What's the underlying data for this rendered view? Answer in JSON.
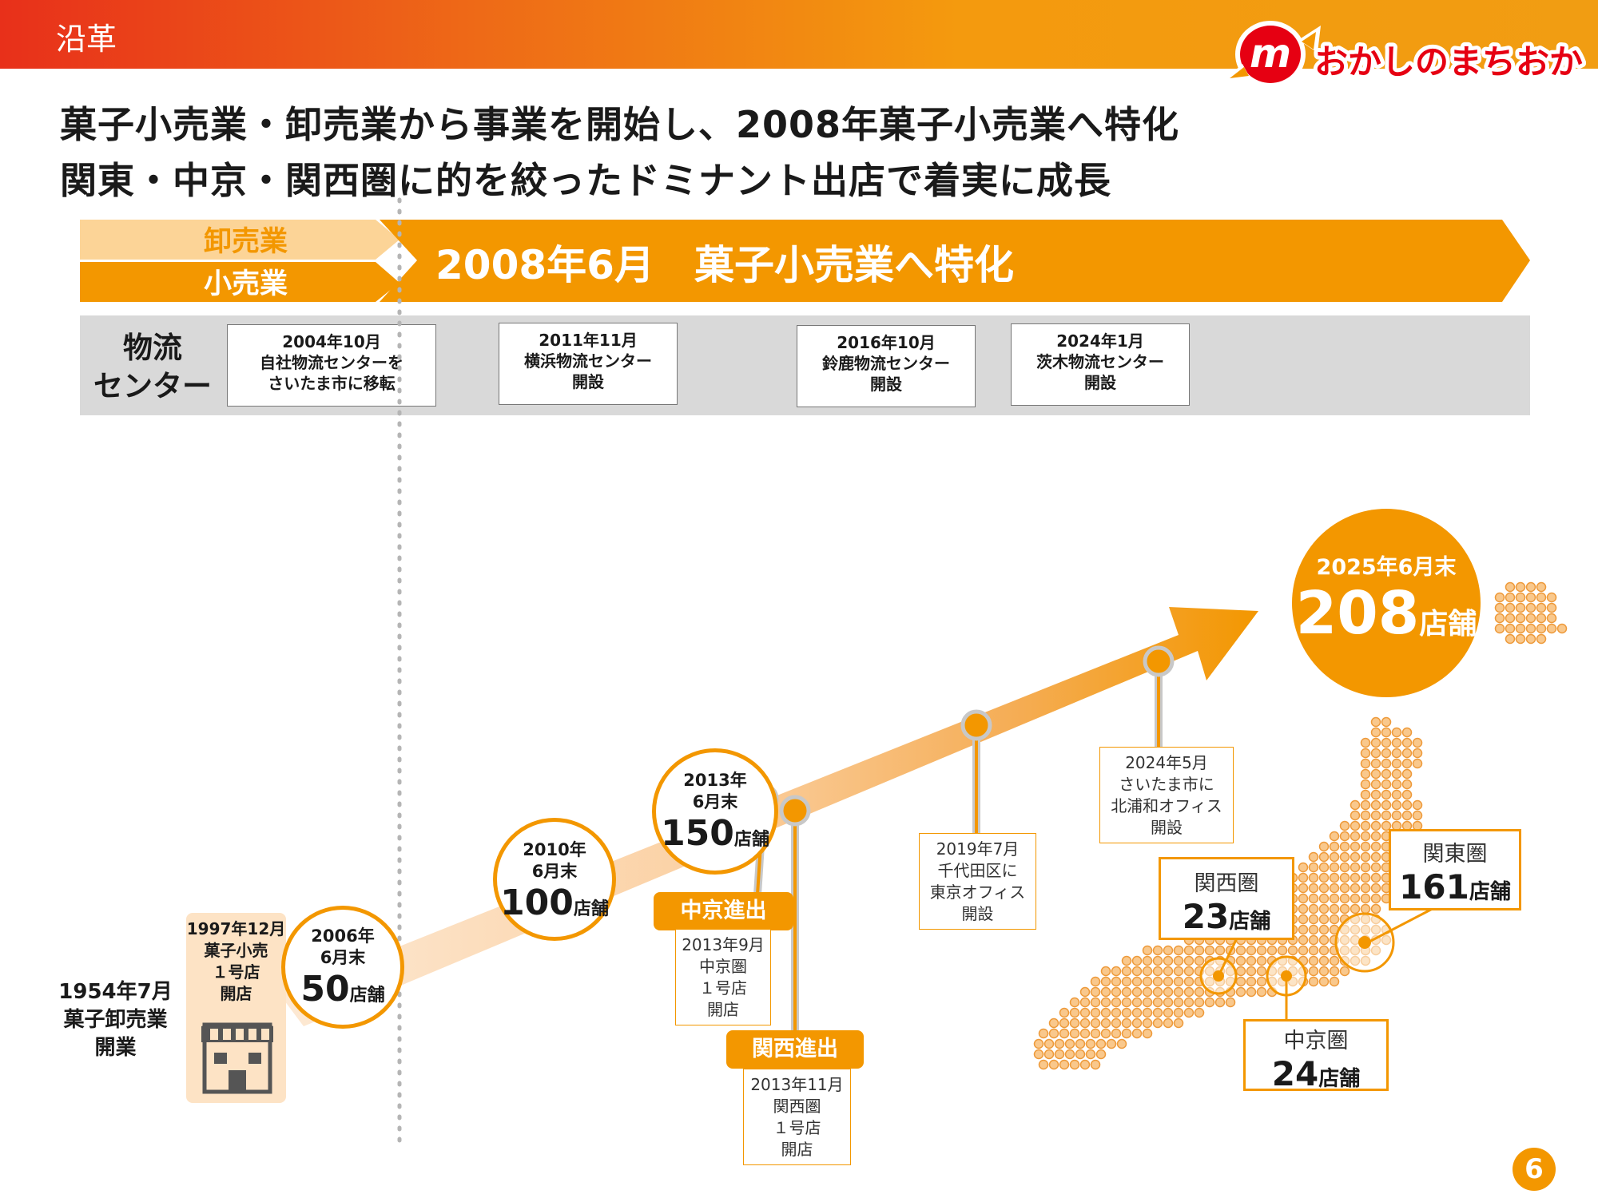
{
  "header": {
    "title": "沿革",
    "logo_text": "おかしのまちおか"
  },
  "headline": {
    "line1": "菓子小売業・卸売業から事業を開始し、2008年菓子小売業へ特化",
    "line2": "関東・中京・関西圏に的を絞ったドミナント出店で着実に成長"
  },
  "banner": {
    "wholesale": "卸売業",
    "retail": "小売業",
    "main": "2008年6月　菓子小売業へ特化"
  },
  "logistics": {
    "label_line1": "物流",
    "label_line2": "センター",
    "items": [
      {
        "line1": "2004年10月",
        "line2": "自社物流センターを",
        "line3": "さいたま市に移転"
      },
      {
        "line1": "2011年11月",
        "line2": "横浜物流センター",
        "line3": "開設"
      },
      {
        "line1": "2016年10月",
        "line2": "鈴鹿物流センター",
        "line3": "開設"
      },
      {
        "line1": "2024年1月",
        "line2": "茨木物流センター",
        "line3": "開設"
      }
    ]
  },
  "founding": {
    "line1": "1954年7月",
    "line2": "菓子卸売業",
    "line3": "開業"
  },
  "first_store": {
    "line1": "1997年12月",
    "line2": "菓子小売",
    "line3": "１号店",
    "line4": "開店"
  },
  "milestones": [
    {
      "year": "2006年",
      "month": "6月末",
      "count": "50",
      "unit": "店舗"
    },
    {
      "year": "2010年",
      "month": "6月末",
      "count": "100",
      "unit": "店舗"
    },
    {
      "year": "2013年",
      "month": "6月末",
      "count": "150",
      "unit": "店舗"
    }
  ],
  "final": {
    "date": "2025年6月末",
    "count": "208",
    "unit": "店舗"
  },
  "chukyo": {
    "tag": "中京進出",
    "line1": "2013年9月",
    "line2": "中京圏",
    "line3": "１号店",
    "line4": "開店"
  },
  "kansai": {
    "tag": "関西進出",
    "line1": "2013年11月",
    "line2": "関西圏",
    "line3": "１号店",
    "line4": "開店"
  },
  "tokyo_office": {
    "line1": "2019年7月",
    "line2": "千代田区に",
    "line3": "東京オフィス",
    "line4": "開設"
  },
  "urawa_office": {
    "line1": "2024年5月",
    "line2": "さいたま市に",
    "line3": "北浦和オフィス",
    "line4": "開設"
  },
  "regions": {
    "kanto": {
      "name": "関東圏",
      "count": "161",
      "unit": "店舗"
    },
    "kansai": {
      "name": "関西圏",
      "count": "23",
      "unit": "店舗"
    },
    "chukyo": {
      "name": "中京圏",
      "count": "24",
      "unit": "店舗"
    }
  },
  "page_number": "6",
  "colors": {
    "accent": "#f39700",
    "light_accent": "#fcd497",
    "header_red": "#e8301a"
  }
}
